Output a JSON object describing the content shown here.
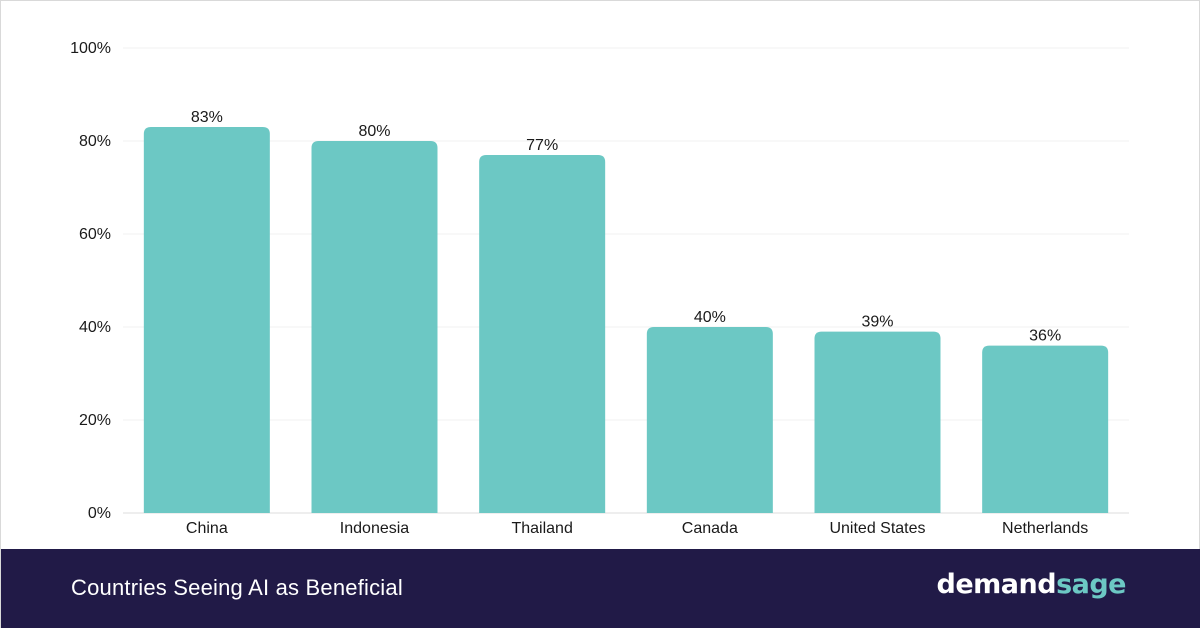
{
  "chart_data": {
    "type": "bar",
    "title": "Countries Seeing AI as Beneficial",
    "categories": [
      "China",
      "Indonesia",
      "Thailand",
      "Canada",
      "United States",
      "Netherlands"
    ],
    "values": [
      83,
      80,
      77,
      40,
      39,
      36
    ],
    "data_labels": [
      "83%",
      "80%",
      "77%",
      "40%",
      "39%",
      "36%"
    ],
    "ylim": [
      0,
      100
    ],
    "yticks": [
      0,
      20,
      40,
      60,
      80,
      100
    ],
    "ytick_labels": [
      "0%",
      "20%",
      "40%",
      "60%",
      "80%",
      "100%"
    ],
    "xlabel": "",
    "ylabel": "",
    "grid": true,
    "legend": "none",
    "bar_color": "#6cc8c4"
  },
  "footer": {
    "title": "Countries Seeing AI as Beneficial",
    "brand_part1": "demand",
    "brand_part2": "sage",
    "background": "#211a47",
    "brand_accent": "#6cc8c4"
  }
}
